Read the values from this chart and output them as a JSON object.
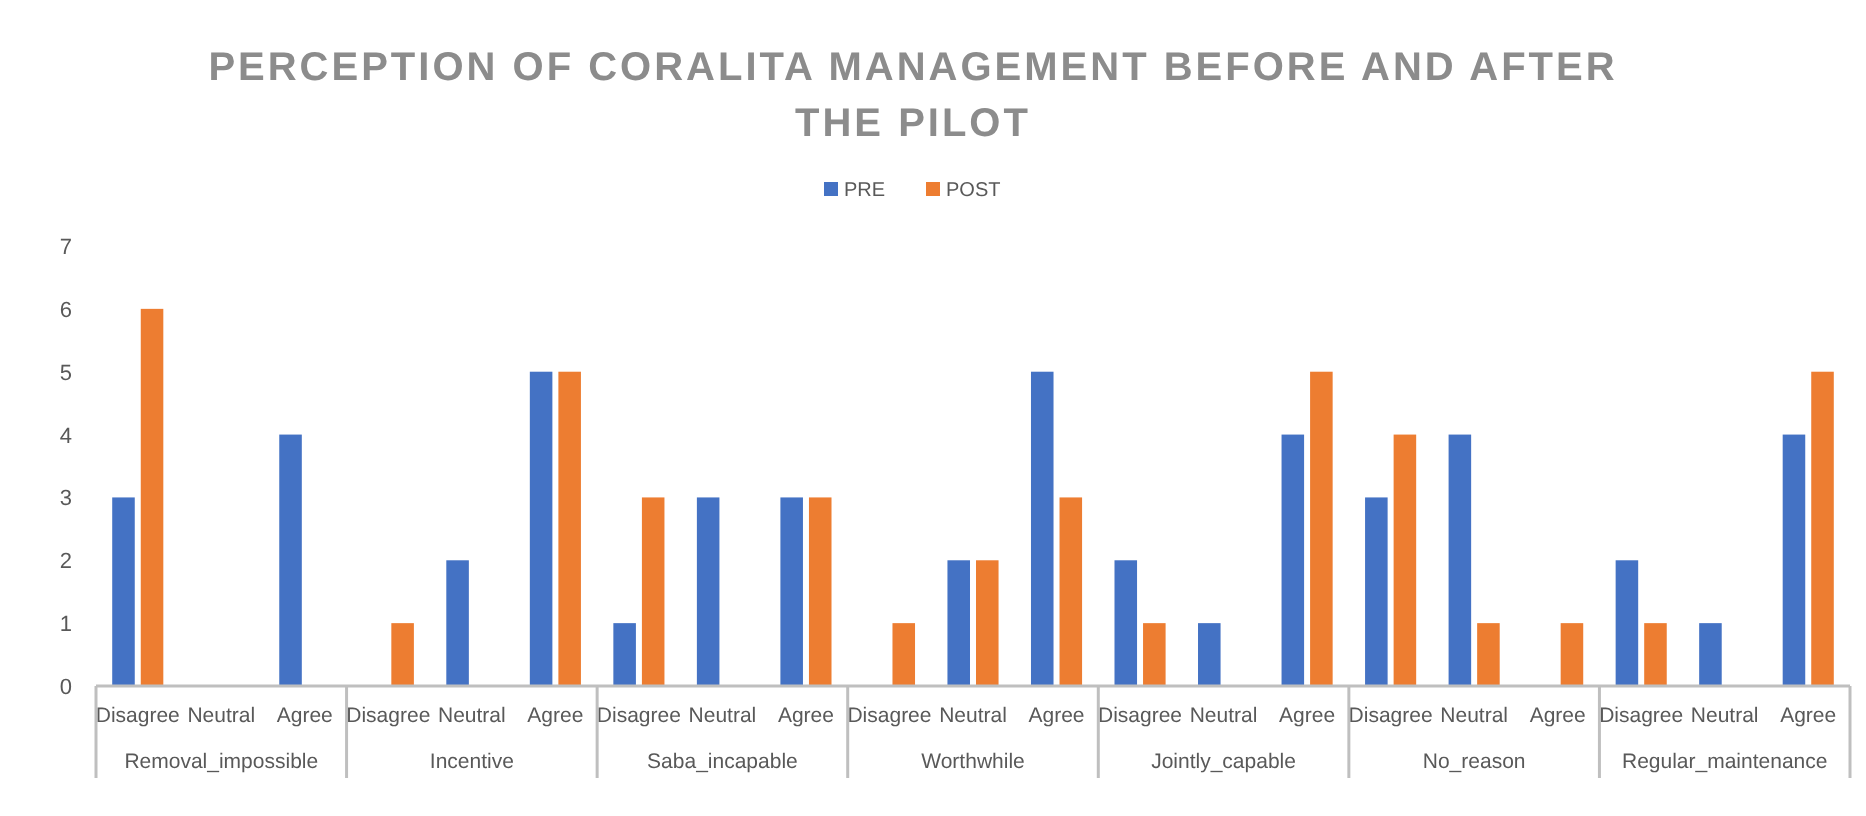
{
  "chart_data": {
    "type": "bar",
    "title": "PERCEPTION OF CORALITA MANAGEMENT BEFORE AND AFTER THE PILOT",
    "categories": [
      "Disagree",
      "Neutral",
      "Agree",
      "Disagree",
      "Neutral",
      "Agree",
      "Disagree",
      "Neutral",
      "Agree",
      "Disagree",
      "Neutral",
      "Agree",
      "Disagree",
      "Neutral",
      "Agree",
      "Disagree",
      "Neutral",
      "Agree",
      "Disagree",
      "Neutral",
      "Agree"
    ],
    "annotations": [
      "Removal_impossible",
      "Incentive",
      "Saba_incapable",
      "Worthwhile",
      "Jointly_capable",
      "No_reason",
      "Regular_maintenance"
    ],
    "series": [
      {
        "name": "PRE",
        "color": "#4472c4",
        "values": [
          3,
          0,
          4,
          0,
          2,
          5,
          1,
          3,
          3,
          0,
          2,
          5,
          2,
          1,
          4,
          3,
          4,
          0,
          2,
          1,
          4
        ]
      },
      {
        "name": "POST",
        "color": "#ed7d31",
        "values": [
          6,
          0,
          0,
          1,
          0,
          5,
          3,
          0,
          3,
          1,
          2,
          3,
          1,
          0,
          5,
          4,
          1,
          1,
          1,
          0,
          5
        ]
      }
    ],
    "ylim": [
      0,
      7
    ],
    "yticks": [
      0,
      1,
      2,
      3,
      4,
      5,
      6,
      7
    ],
    "grid": false,
    "legend": "top"
  }
}
